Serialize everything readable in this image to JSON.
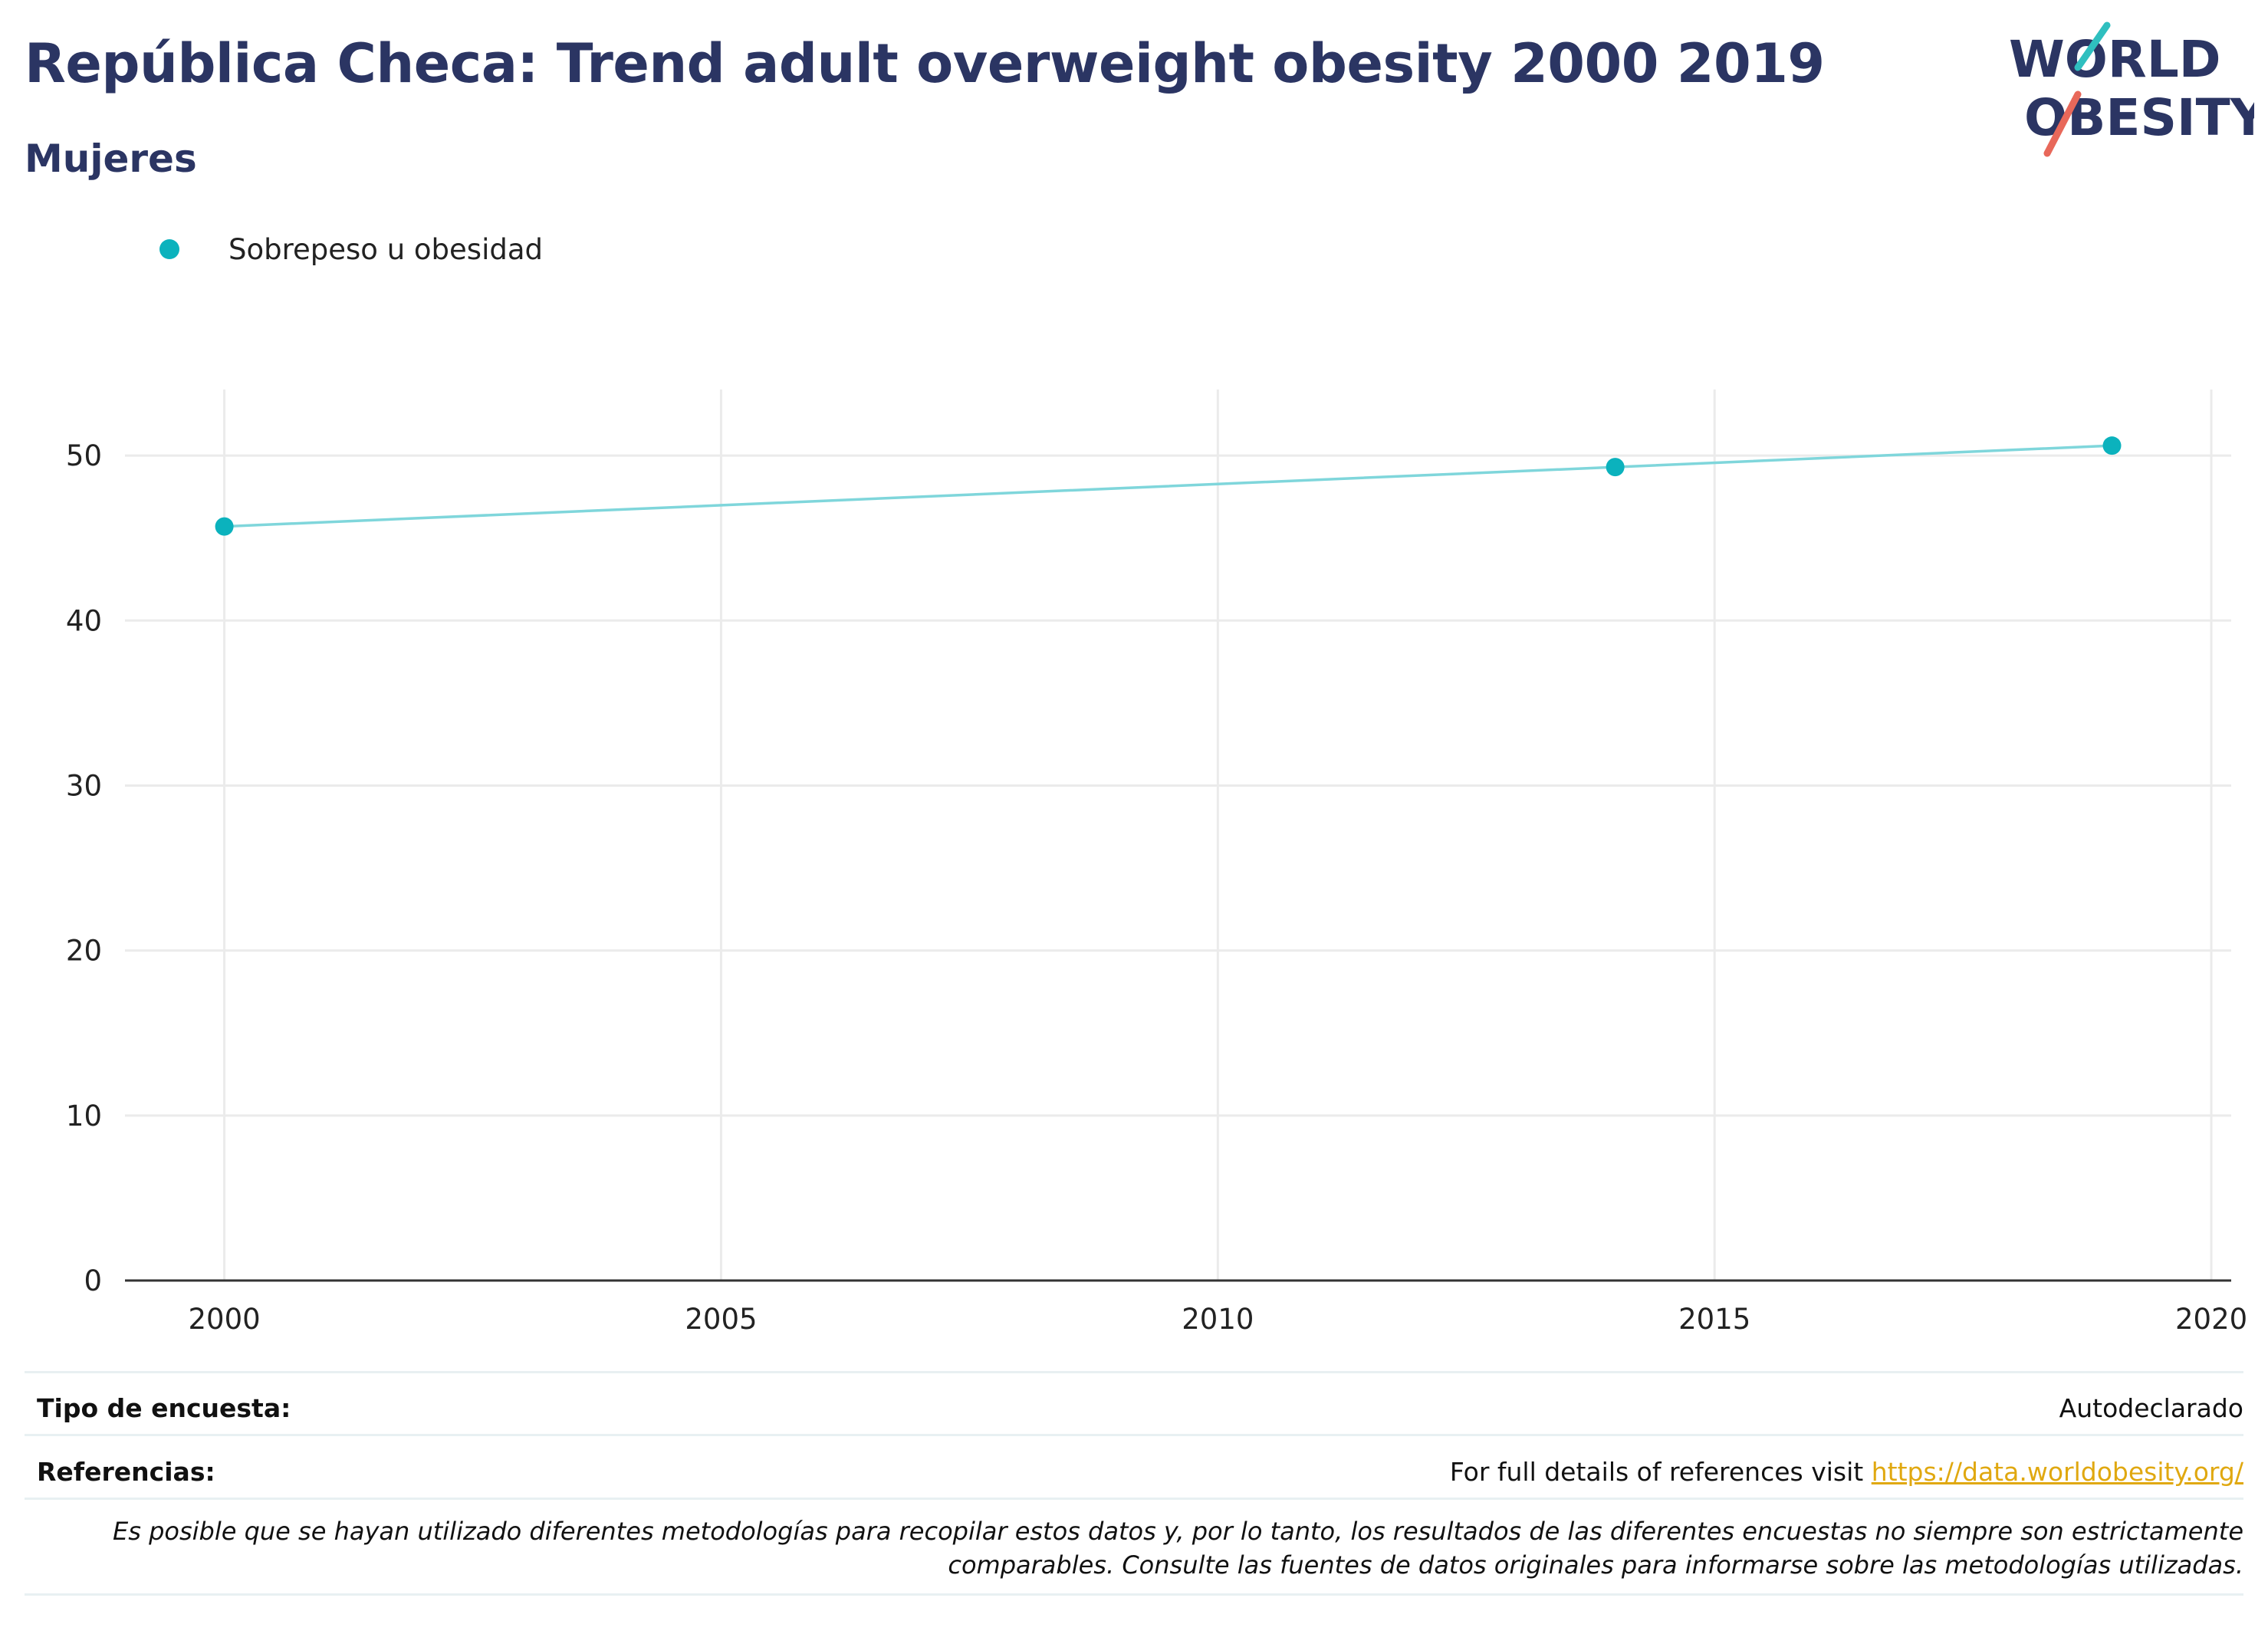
{
  "header": {
    "title": "República Checa: Trend adult overweight obesity 2000 2019",
    "subtitle": "Mujeres"
  },
  "logo": {
    "line1": "WORLD",
    "line2": "OBESITY",
    "colors": {
      "text": "#2b3563",
      "slash_top": "#2fbfbf",
      "slash_bottom": "#e8685a"
    }
  },
  "colors": {
    "series": "#0bb2bd",
    "line": "#7fd6db",
    "grid": "#ebebeb",
    "axis": "#333333",
    "title": "#2b3563",
    "link": "#e0a810"
  },
  "chart_data": {
    "type": "line",
    "title": "República Checa: Trend adult overweight obesity 2000 2019",
    "subtitle": "Mujeres",
    "xlabel": "",
    "ylabel": "",
    "xlim": [
      1999,
      2020.2
    ],
    "ylim": [
      0,
      54
    ],
    "x_ticks": [
      2000,
      2005,
      2010,
      2015,
      2020
    ],
    "y_ticks": [
      0,
      10,
      20,
      30,
      40,
      50
    ],
    "grid": true,
    "legend_position": "top-left",
    "series": [
      {
        "name": "Sobrepeso u obesidad",
        "x": [
          2000,
          2014,
          2019
        ],
        "y": [
          45.7,
          49.3,
          50.6
        ]
      }
    ]
  },
  "footer": {
    "survey_label": "Tipo de encuesta:",
    "survey_value": "Autodeclarado",
    "refs_label": "Referencias:",
    "refs_text": "For full details of references visit ",
    "refs_link": "https://data.worldobesity.org/",
    "note": "Es posible que se hayan utilizado diferentes metodologías para recopilar estos datos y, por lo tanto, los resultados de las diferentes encuestas no siempre son estrictamente comparables. Consulte las fuentes de datos originales para informarse sobre las metodologías utilizadas."
  }
}
